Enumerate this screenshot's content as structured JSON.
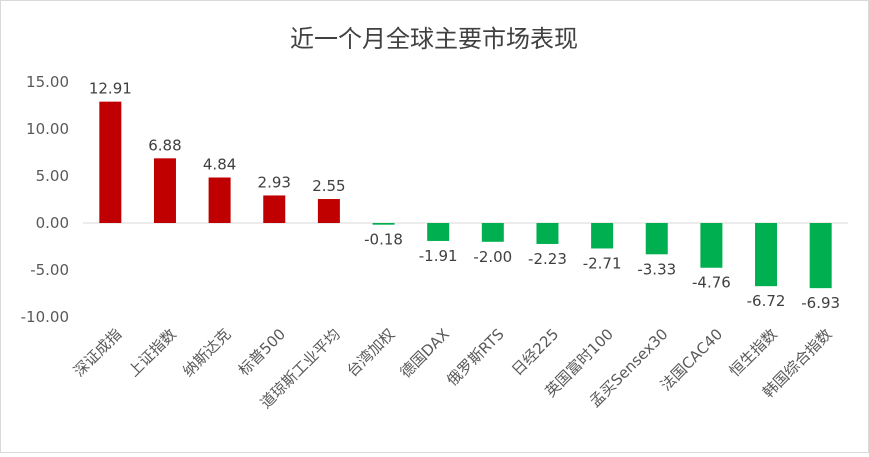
{
  "chart_data": {
    "type": "bar",
    "title": "近一个月全球主要市场表现",
    "xlabel": "",
    "ylabel": "",
    "ylim": [
      -10,
      15
    ],
    "yticks": [
      "15.00",
      "10.00",
      "5.00",
      "0.00",
      "-5.00",
      "-10.00"
    ],
    "ytick_values": [
      15,
      10,
      5,
      0,
      -5,
      -10
    ],
    "categories": [
      "深证成指",
      "上证指数",
      "纳斯达克",
      "标普500",
      "道琼斯工业平均",
      "台湾加权",
      "德国DAX",
      "俄罗斯RTS",
      "日经225",
      "英国富时100",
      "孟买Sensex30",
      "法国CAC40",
      "恒生指数",
      "韩国综合指数"
    ],
    "values": [
      12.91,
      6.88,
      4.84,
      2.93,
      2.55,
      -0.18,
      -1.91,
      -2.0,
      -2.23,
      -2.71,
      -3.33,
      -4.76,
      -6.72,
      -6.93
    ],
    "value_labels": [
      "12.91",
      "6.88",
      "4.84",
      "2.93",
      "2.55",
      "-0.18",
      "-1.91",
      "-2.00",
      "-2.23",
      "-2.71",
      "-3.33",
      "-4.76",
      "-6.72",
      "-6.93"
    ],
    "grid": "none",
    "legend": "none",
    "colors": {
      "positive": "#c00000",
      "negative": "#00b050",
      "axis": "#d9d9d9"
    }
  }
}
